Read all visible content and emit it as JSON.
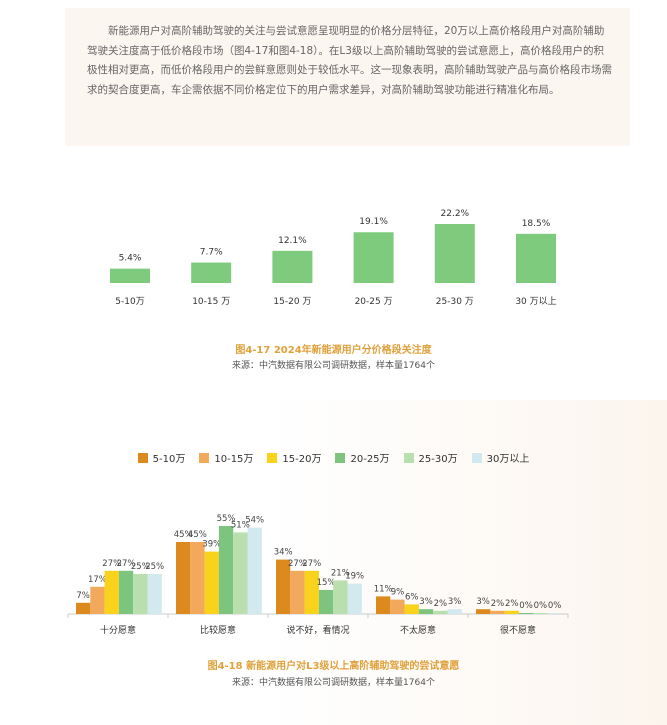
{
  "intro_text": "新能源用户对高阶辅助驾驶的关注与尝试意愿呈现明显的价格分层特征，20万以上高价格段用户对高阶辅助驾驶关注度高于低价格段市场（图4-17和图4-18）。在L3级以上高阶辅助驾驶的尝试意愿上，高价格段用户的积极性相对更高，而低价格段用户的尝鲜意愿则处于较低水平。这一现象表明，高阶辅助驾驶产品与高价格段市场需求的契合度更高，车企需依据不同价格定位下的用户需求差异，对高阶辅助驾驶功能进行精准化布局。",
  "chart_data": [
    {
      "type": "bar",
      "title": "图4-17 2024年新能源用户分价格段关注度",
      "source": "来源：中汽数据有限公司调研数据，样本量1764个",
      "categories": [
        "5-10万",
        "10-15 万",
        "15-20 万",
        "20-25 万",
        "25-30 万",
        "30 万以上"
      ],
      "values": [
        5.4,
        7.7,
        12.1,
        19.1,
        22.2,
        18.5
      ],
      "labels": [
        "5.4%",
        "7.7%",
        "12.1%",
        "19.1%",
        "22.2%",
        "18.5%"
      ],
      "color": "#7fcb7e",
      "ylim": [
        0,
        25
      ]
    },
    {
      "type": "bar",
      "title": "图4-18 新能源用户对L3级以上高阶辅助驾驶的尝试意愿",
      "source": "来源：中汽数据有限公司调研数据，样本量1764个",
      "categories": [
        "十分愿意",
        "比较愿意",
        "说不好，看情况",
        "不太愿意",
        "很不愿意"
      ],
      "legend_position": "top",
      "ylim": [
        0,
        60
      ],
      "series": [
        {
          "name": "5-10万",
          "color": "#dc8a1e",
          "values": [
            7,
            45,
            34,
            11,
            3
          ]
        },
        {
          "name": "10-15万",
          "color": "#f3a95c",
          "values": [
            17,
            45,
            27,
            9,
            2
          ]
        },
        {
          "name": "15-20万",
          "color": "#f8d21b",
          "values": [
            27,
            39,
            27,
            6,
            2
          ]
        },
        {
          "name": "20-25万",
          "color": "#7dc47e",
          "values": [
            27,
            55,
            15,
            3,
            0
          ]
        },
        {
          "name": "25-30万",
          "color": "#b9dfae",
          "values": [
            25,
            51,
            21,
            2,
            0
          ]
        },
        {
          "name": "30万以上",
          "color": "#d1e9ef",
          "values": [
            25,
            54,
            19,
            3,
            0
          ]
        }
      ]
    }
  ]
}
